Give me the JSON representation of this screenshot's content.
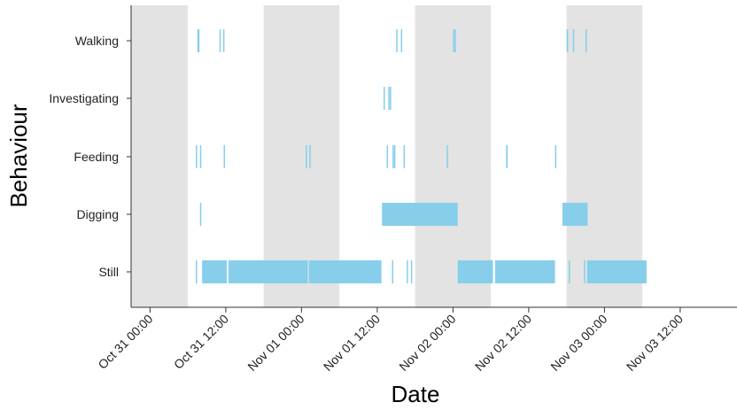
{
  "chart_data": {
    "type": "timeline",
    "title": "",
    "xlabel": "Date",
    "ylabel": "Behaviour",
    "xlim": [
      "2023-10-30T21:00",
      "2023-11-03T21:00"
    ],
    "grid": false,
    "night_shading": [
      [
        "2023-10-30T21:00",
        "2023-10-31T06:00"
      ],
      [
        "2023-10-31T18:00",
        "2023-11-01T06:00"
      ],
      [
        "2023-11-01T18:00",
        "2023-11-02T06:00"
      ],
      [
        "2023-11-02T18:00",
        "2023-11-03T06:00"
      ]
    ],
    "x_ticks": [
      {
        "t": "2023-10-31T00:00",
        "label": "Oct 31 00:00"
      },
      {
        "t": "2023-10-31T12:00",
        "label": "Oct 31 12:00"
      },
      {
        "t": "2023-11-01T00:00",
        "label": "Nov 01 00:00"
      },
      {
        "t": "2023-11-01T12:00",
        "label": "Nov 01 12:00"
      },
      {
        "t": "2023-11-02T00:00",
        "label": "Nov 02 00:00"
      },
      {
        "t": "2023-11-02T12:00",
        "label": "Nov 02 12:00"
      },
      {
        "t": "2023-11-03T00:00",
        "label": "Nov 03 00:00"
      },
      {
        "t": "2023-11-03T12:00",
        "label": "Nov 03 12:00"
      }
    ],
    "categories": [
      "Walking",
      "Investigating",
      "Feeding",
      "Digging",
      "Still"
    ],
    "colors": {
      "bar": "#87ceeb",
      "shade": "#e3e3e3",
      "axis": "#333333"
    },
    "intervals": {
      "Walking": [
        [
          "2023-10-31T07:30",
          "2023-10-31T07:50"
        ],
        [
          "2023-10-31T11:00",
          "2023-10-31T11:08"
        ],
        [
          "2023-10-31T11:35",
          "2023-10-31T11:43"
        ],
        [
          "2023-11-01T15:00",
          "2023-11-01T15:08"
        ],
        [
          "2023-11-01T15:45",
          "2023-11-01T15:53"
        ],
        [
          "2023-11-02T00:00",
          "2023-11-02T00:08"
        ],
        [
          "2023-11-02T00:15",
          "2023-11-02T00:23"
        ],
        [
          "2023-11-02T18:00",
          "2023-11-02T18:15"
        ],
        [
          "2023-11-02T19:00",
          "2023-11-02T19:08"
        ],
        [
          "2023-11-02T21:00",
          "2023-11-02T21:08"
        ]
      ],
      "Investigating": [
        [
          "2023-11-01T13:00",
          "2023-11-01T13:08"
        ],
        [
          "2023-11-01T13:45",
          "2023-11-01T13:52"
        ],
        [
          "2023-11-01T14:00",
          "2023-11-01T14:08"
        ]
      ],
      "Feeding": [
        [
          "2023-10-31T07:15",
          "2023-10-31T07:23"
        ],
        [
          "2023-10-31T07:55",
          "2023-10-31T08:03"
        ],
        [
          "2023-10-31T11:40",
          "2023-10-31T11:48"
        ],
        [
          "2023-11-01T00:40",
          "2023-11-01T00:48"
        ],
        [
          "2023-11-01T01:15",
          "2023-11-01T01:23"
        ],
        [
          "2023-11-01T13:30",
          "2023-11-01T13:38"
        ],
        [
          "2023-11-01T14:25",
          "2023-11-01T14:33"
        ],
        [
          "2023-11-01T14:40",
          "2023-11-01T14:48"
        ],
        [
          "2023-11-01T16:10",
          "2023-11-01T16:18"
        ],
        [
          "2023-11-01T23:00",
          "2023-11-01T23:08"
        ],
        [
          "2023-11-02T08:25",
          "2023-11-02T08:40"
        ],
        [
          "2023-11-02T16:10",
          "2023-11-02T16:18"
        ]
      ],
      "Digging": [
        [
          "2023-10-31T07:55",
          "2023-10-31T08:03"
        ],
        [
          "2023-11-01T12:45",
          "2023-11-02T00:45"
        ],
        [
          "2023-11-02T17:20",
          "2023-11-02T21:20"
        ]
      ],
      "Still": [
        [
          "2023-10-31T07:15",
          "2023-10-31T07:23"
        ],
        [
          "2023-10-31T08:15",
          "2023-10-31T12:10"
        ],
        [
          "2023-10-31T12:25",
          "2023-11-01T01:00"
        ],
        [
          "2023-11-01T01:10",
          "2023-11-01T12:40"
        ],
        [
          "2023-11-01T14:20",
          "2023-11-01T14:28"
        ],
        [
          "2023-11-01T16:40",
          "2023-11-01T16:48"
        ],
        [
          "2023-11-01T17:20",
          "2023-11-01T17:28"
        ],
        [
          "2023-11-02T00:45",
          "2023-11-02T06:20"
        ],
        [
          "2023-11-02T06:40",
          "2023-11-02T16:10"
        ],
        [
          "2023-11-02T18:20",
          "2023-11-02T18:28"
        ],
        [
          "2023-11-02T20:45",
          "2023-11-02T20:53"
        ],
        [
          "2023-11-02T21:15",
          "2023-11-03T06:40"
        ]
      ]
    }
  }
}
